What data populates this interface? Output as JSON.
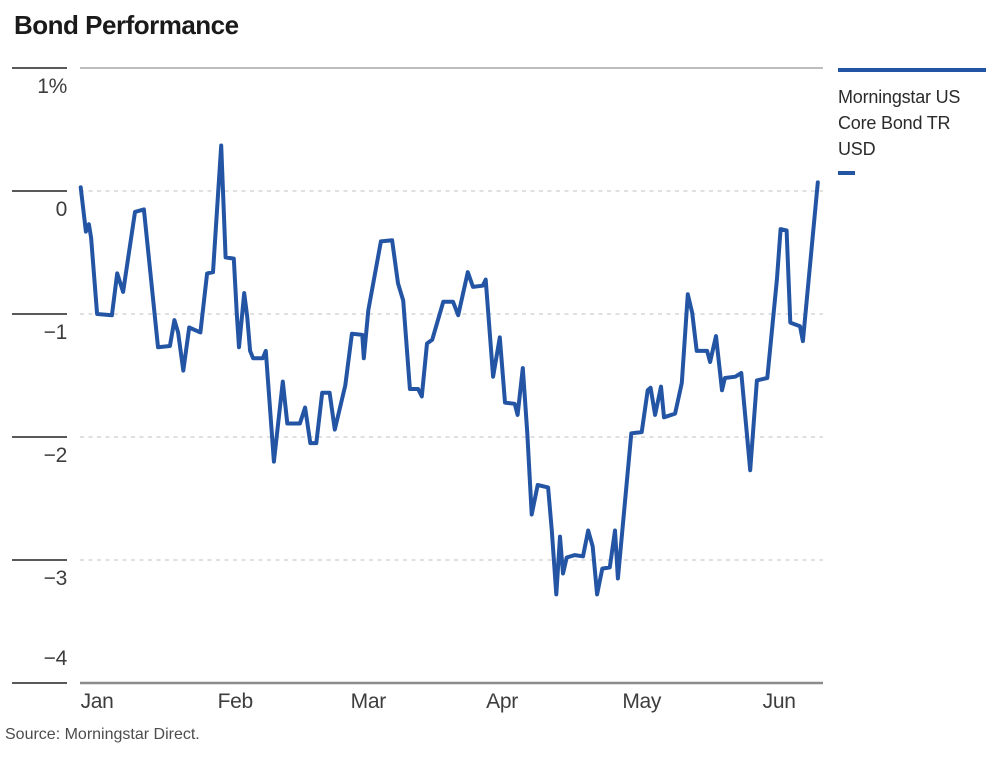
{
  "chart_data": {
    "type": "line",
    "title": "Bond Performance",
    "source": "Source: Morningstar Direct.",
    "unit": "%",
    "xlabel": "",
    "ylabel": "",
    "ylim": [
      -4,
      1
    ],
    "grid": "horizontal-dashed",
    "legend_position": "right",
    "y_ticks": [
      {
        "label": "1%",
        "value": 1
      },
      {
        "label": "0",
        "value": 0
      },
      {
        "label": "−1",
        "value": -1
      },
      {
        "label": "−2",
        "value": -2
      },
      {
        "label": "−3",
        "value": -3
      },
      {
        "label": "−4",
        "value": -4
      }
    ],
    "x_ticks": [
      {
        "label": "Jan",
        "pos": 0.023
      },
      {
        "label": "Feb",
        "pos": 0.209
      },
      {
        "label": "Mar",
        "pos": 0.388
      },
      {
        "label": "Apr",
        "pos": 0.568
      },
      {
        "label": "May",
        "pos": 0.756
      },
      {
        "label": "Jun",
        "pos": 0.941
      }
    ],
    "series": [
      {
        "name": "Morningstar US Core Bond TR USD",
        "color": "#2355A4",
        "points": [
          [
            0.001,
            0.03
          ],
          [
            0.008,
            -0.33
          ],
          [
            0.012,
            -0.27
          ],
          [
            0.015,
            -0.38
          ],
          [
            0.023,
            -1.0
          ],
          [
            0.043,
            -1.01
          ],
          [
            0.05,
            -0.67
          ],
          [
            0.058,
            -0.82
          ],
          [
            0.074,
            -0.17
          ],
          [
            0.086,
            -0.15
          ],
          [
            0.105,
            -1.27
          ],
          [
            0.121,
            -1.26
          ],
          [
            0.127,
            -1.05
          ],
          [
            0.132,
            -1.15
          ],
          [
            0.139,
            -1.46
          ],
          [
            0.147,
            -1.11
          ],
          [
            0.162,
            -1.15
          ],
          [
            0.171,
            -0.67
          ],
          [
            0.179,
            -0.66
          ],
          [
            0.19,
            0.37
          ],
          [
            0.196,
            -0.54
          ],
          [
            0.207,
            -0.55
          ],
          [
            0.211,
            -1.0
          ],
          [
            0.214,
            -1.27
          ],
          [
            0.221,
            -0.83
          ],
          [
            0.225,
            -1.02
          ],
          [
            0.229,
            -1.3
          ],
          [
            0.233,
            -1.36
          ],
          [
            0.246,
            -1.36
          ],
          [
            0.25,
            -1.3
          ],
          [
            0.261,
            -2.2
          ],
          [
            0.273,
            -1.55
          ],
          [
            0.279,
            -1.89
          ],
          [
            0.296,
            -1.89
          ],
          [
            0.303,
            -1.76
          ],
          [
            0.31,
            -2.05
          ],
          [
            0.318,
            -2.05
          ],
          [
            0.326,
            -1.64
          ],
          [
            0.336,
            -1.64
          ],
          [
            0.343,
            -1.94
          ],
          [
            0.357,
            -1.58
          ],
          [
            0.366,
            -1.16
          ],
          [
            0.38,
            -1.17
          ],
          [
            0.382,
            -1.36
          ],
          [
            0.388,
            -0.97
          ],
          [
            0.405,
            -0.41
          ],
          [
            0.42,
            -0.4
          ],
          [
            0.428,
            -0.75
          ],
          [
            0.435,
            -0.89
          ],
          [
            0.444,
            -1.61
          ],
          [
            0.455,
            -1.61
          ],
          [
            0.46,
            -1.67
          ],
          [
            0.467,
            -1.24
          ],
          [
            0.474,
            -1.21
          ],
          [
            0.489,
            -0.9
          ],
          [
            0.502,
            -0.9
          ],
          [
            0.509,
            -1.01
          ],
          [
            0.522,
            -0.66
          ],
          [
            0.529,
            -0.78
          ],
          [
            0.542,
            -0.77
          ],
          [
            0.546,
            -0.72
          ],
          [
            0.556,
            -1.51
          ],
          [
            0.565,
            -1.19
          ],
          [
            0.572,
            -1.72
          ],
          [
            0.585,
            -1.73
          ],
          [
            0.589,
            -1.82
          ],
          [
            0.596,
            -1.44
          ],
          [
            0.602,
            -1.97
          ],
          [
            0.608,
            -2.63
          ],
          [
            0.616,
            -2.39
          ],
          [
            0.63,
            -2.41
          ],
          [
            0.635,
            -2.76
          ],
          [
            0.641,
            -3.28
          ],
          [
            0.646,
            -2.81
          ],
          [
            0.65,
            -3.11
          ],
          [
            0.655,
            -2.98
          ],
          [
            0.666,
            -2.96
          ],
          [
            0.677,
            -2.97
          ],
          [
            0.684,
            -2.76
          ],
          [
            0.69,
            -2.89
          ],
          [
            0.696,
            -3.28
          ],
          [
            0.703,
            -3.07
          ],
          [
            0.713,
            -3.06
          ],
          [
            0.72,
            -2.76
          ],
          [
            0.724,
            -3.15
          ],
          [
            0.742,
            -1.97
          ],
          [
            0.756,
            -1.96
          ],
          [
            0.764,
            -1.62
          ],
          [
            0.768,
            -1.6
          ],
          [
            0.774,
            -1.82
          ],
          [
            0.782,
            -1.59
          ],
          [
            0.786,
            -1.84
          ],
          [
            0.801,
            -1.81
          ],
          [
            0.81,
            -1.56
          ],
          [
            0.818,
            -0.84
          ],
          [
            0.824,
            -0.99
          ],
          [
            0.83,
            -1.3
          ],
          [
            0.844,
            -1.3
          ],
          [
            0.848,
            -1.39
          ],
          [
            0.856,
            -1.18
          ],
          [
            0.864,
            -1.62
          ],
          [
            0.868,
            -1.52
          ],
          [
            0.882,
            -1.51
          ],
          [
            0.89,
            -1.48
          ],
          [
            0.902,
            -2.27
          ],
          [
            0.911,
            -1.54
          ],
          [
            0.925,
            -1.52
          ],
          [
            0.938,
            -0.72
          ],
          [
            0.943,
            -0.31
          ],
          [
            0.951,
            -0.32
          ],
          [
            0.956,
            -1.07
          ],
          [
            0.969,
            -1.1
          ],
          [
            0.973,
            -1.22
          ],
          [
            0.993,
            0.07
          ]
        ]
      }
    ]
  },
  "legend": {
    "lines": [
      "Morningstar US",
      "Core Bond TR USD"
    ]
  },
  "colors": {
    "line": "#2355A4",
    "grid_dashed": "#d6d6d6",
    "top_rule": "#a8a8a8",
    "bottom_axis": "#8c8c8c",
    "tick": "#595959"
  }
}
